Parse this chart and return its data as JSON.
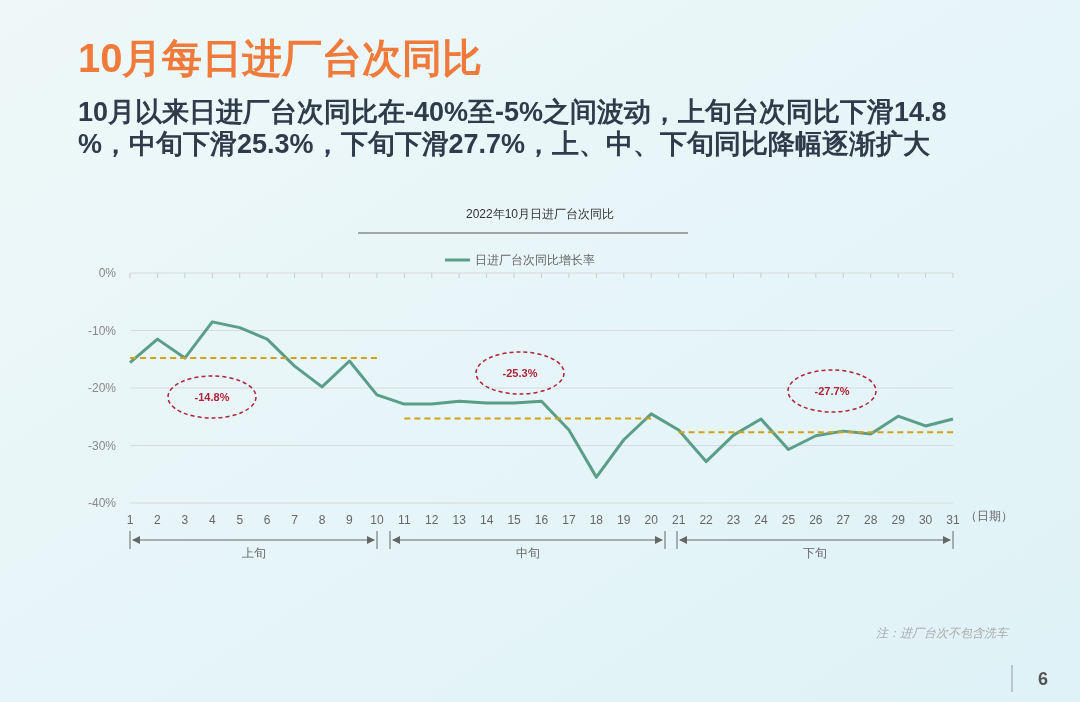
{
  "chart_data": {
    "type": "line",
    "title": "10月每日进厂台次同比",
    "subtitle": "10月以来日进厂台次同比在-40%至-5%之间波动，上旬台次同比下滑14.8%，中旬下滑25.3%，下旬下滑27.7%，上、中、下旬同比降幅逐渐扩大",
    "xlabel": "（日期）",
    "legend": "top",
    "grid": "y",
    "xlim": [
      1,
      31
    ],
    "xticks": [
      1,
      2,
      3,
      4,
      5,
      6,
      7,
      8,
      9,
      10,
      11,
      12,
      13,
      14,
      15,
      16,
      17,
      18,
      19,
      20,
      21,
      22,
      23,
      24,
      25,
      26,
      27,
      28,
      29,
      30,
      31
    ],
    "ylim": [
      -40,
      0
    ],
    "yticks": [
      {
        "value": -40,
        "label": "-40%"
      },
      {
        "value": -30,
        "label": "-30%"
      },
      {
        "value": -20,
        "label": "-20%"
      },
      {
        "value": -10,
        "label": "-10%"
      },
      {
        "value": 0,
        "label": "0%"
      }
    ],
    "series": [
      {
        "name": "日进厂台次同比增长率",
        "color": "#5a9e8a",
        "line_style": "solid",
        "x": [
          1,
          2,
          3,
          4,
          5,
          6,
          7,
          8,
          9,
          10,
          11,
          12,
          13,
          14,
          15,
          16,
          17,
          18,
          19,
          20,
          21,
          22,
          23,
          24,
          25,
          26,
          27,
          28,
          29,
          30,
          31
        ],
        "values": [
          -15.6,
          -11.5,
          -14.8,
          -8.5,
          -9.5,
          -11.5,
          -16.2,
          -19.8,
          -15.3,
          -21.2,
          -22.8,
          -22.8,
          -22.3,
          -22.6,
          -22.6,
          -22.3,
          -27.3,
          -35.5,
          -29,
          -24.5,
          -27.3,
          -32.8,
          -28.2,
          -25.4,
          -30.7,
          -28.3,
          -27.5,
          -28,
          -24.9,
          -26.6,
          -25.4
        ]
      },
      {
        "color": "#d4a017",
        "line_style": "dashed",
        "x": [
          1,
          10
        ],
        "values": [
          -14.8,
          -14.8
        ]
      },
      {
        "color": "#d4a017",
        "line_style": "dashed",
        "x": [
          11,
          20
        ],
        "values": [
          -25.3,
          -25.3
        ]
      },
      {
        "color": "#d4a017",
        "line_style": "dashed",
        "x": [
          21,
          31
        ],
        "values": [
          -27.7,
          -27.7
        ]
      }
    ],
    "annotations": [
      "2022年10月日进厂台次同比",
      "-14.8%",
      "-25.3%",
      "-27.7%",
      "上旬",
      "中旬",
      "下旬",
      "注：进厂台次不包含洗车",
      "6"
    ]
  }
}
